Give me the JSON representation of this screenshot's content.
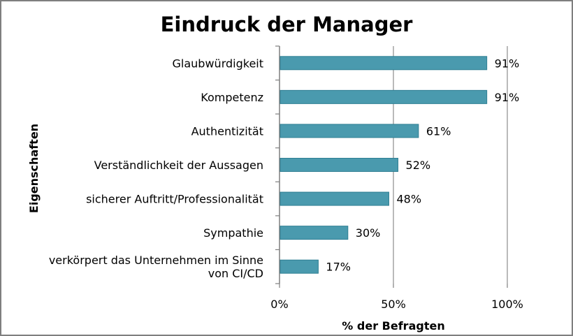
{
  "chart_data": {
    "type": "bar",
    "orientation": "horizontal",
    "title": "Eindruck der Manager",
    "xlabel": "% der Befragten",
    "ylabel": "Eigenschaften",
    "categories": [
      [
        "Glaubwürdigkeit"
      ],
      [
        "Kompetenz"
      ],
      [
        "Authentizität"
      ],
      [
        "Verständlichkeit der Aussagen"
      ],
      [
        "sicherer Auftritt/Professionalität"
      ],
      [
        "Sympathie"
      ],
      [
        "verkörpert das Unternehmen im Sinne",
        "von CI/CD"
      ]
    ],
    "values": [
      91,
      91,
      61,
      52,
      48,
      30,
      17
    ],
    "value_labels": [
      "91%",
      "91%",
      "61%",
      "52%",
      "48%",
      "30%",
      "17%"
    ],
    "xlim": [
      0,
      100
    ],
    "x_ticks": [
      0,
      50,
      100
    ],
    "x_tick_labels": [
      "0%",
      "50%",
      "100%"
    ],
    "grid": "vertical",
    "legend": "none",
    "colors": {
      "bar": "#4a9aae",
      "bar_edge": "#2f7f93",
      "gridline": "#8c8c8c",
      "axis": "#7f7f7f"
    }
  }
}
